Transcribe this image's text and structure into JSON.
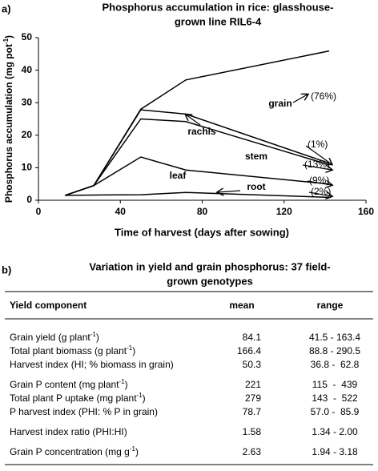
{
  "chart_data": {
    "type": "line",
    "stacked": true,
    "panel_label": "a)",
    "title_lines": [
      "Phosphorus accumulation in rice: glasshouse-",
      "grown line RIL6-4"
    ],
    "x_label": "Time of harvest (days after sowing)",
    "y_label": [
      "Phosphorus accumulation (mg pot",
      "-1",
      ")"
    ],
    "x": [
      13,
      27,
      50,
      72,
      142
    ],
    "series": [
      {
        "name": "root",
        "color": "#000000",
        "values": [
          1.5,
          1.6,
          1.7,
          2.4,
          0.9
        ]
      },
      {
        "name": "leaf",
        "color": "#000000",
        "values": [
          0,
          2.9,
          11.6,
          6.9,
          4.1
        ]
      },
      {
        "name": "stem",
        "color": "#000000",
        "values": [
          0,
          0,
          11.7,
          14.9,
          5.9
        ]
      },
      {
        "name": "rachis",
        "color": "#000000",
        "values": [
          0,
          0,
          2.8,
          2.3,
          0.5
        ]
      },
      {
        "name": "grain",
        "color": "#000000",
        "values": [
          0,
          0,
          0.2,
          10.5,
          34.5
        ]
      }
    ],
    "annotations": [
      "(76%)",
      "(1%)",
      "(13%)",
      "(9%)",
      "(2%)"
    ],
    "xlim": [
      0,
      160
    ],
    "xticks": [
      0,
      40,
      80,
      120,
      160
    ],
    "ylim": [
      0,
      50
    ],
    "yticks": [
      0,
      10,
      20,
      30,
      40,
      50
    ]
  },
  "table": {
    "panel_label": "b)",
    "title_lines": [
      "Variation in yield and grain phosphorus: 37 field-",
      "grown genotypes"
    ],
    "header": [
      "Yield component",
      "mean",
      "range"
    ],
    "groups": [
      [
        {
          "label": [
            "Grain yield (g plant",
            "-1",
            ")"
          ],
          "mean": "84.1",
          "range": "41.5 - 163.4"
        },
        {
          "label": [
            "Total plant biomass (g plant",
            "-1",
            ")"
          ],
          "mean": "166.4",
          "range": "88.8 - 290.5"
        },
        {
          "label": [
            "Harvest index (HI; % biomass in grain)"
          ],
          "mean": "50.3",
          "range": "36.8 -  62.8"
        }
      ],
      [
        {
          "label": [
            "Grain P content (mg plant",
            "-1",
            ")"
          ],
          "mean": "221",
          "range": "115  -  439"
        },
        {
          "label": [
            "Total plant P uptake (mg plant",
            "-1",
            ")"
          ],
          "mean": "279",
          "range": "143  -  522"
        },
        {
          "label": [
            "P harvest index (PHI: % P in grain)"
          ],
          "mean": "78.7",
          "range": "57.0 -  85.9"
        }
      ],
      [
        {
          "label": [
            "Harvest index ratio (PHI:HI)"
          ],
          "mean": "1.58",
          "range": "1.34 - 2.00"
        }
      ],
      [
        {
          "label": [
            "Grain P concentration (mg g",
            "-1",
            ")"
          ],
          "mean": "2.63",
          "range": "1.94 - 3.18"
        }
      ]
    ]
  }
}
